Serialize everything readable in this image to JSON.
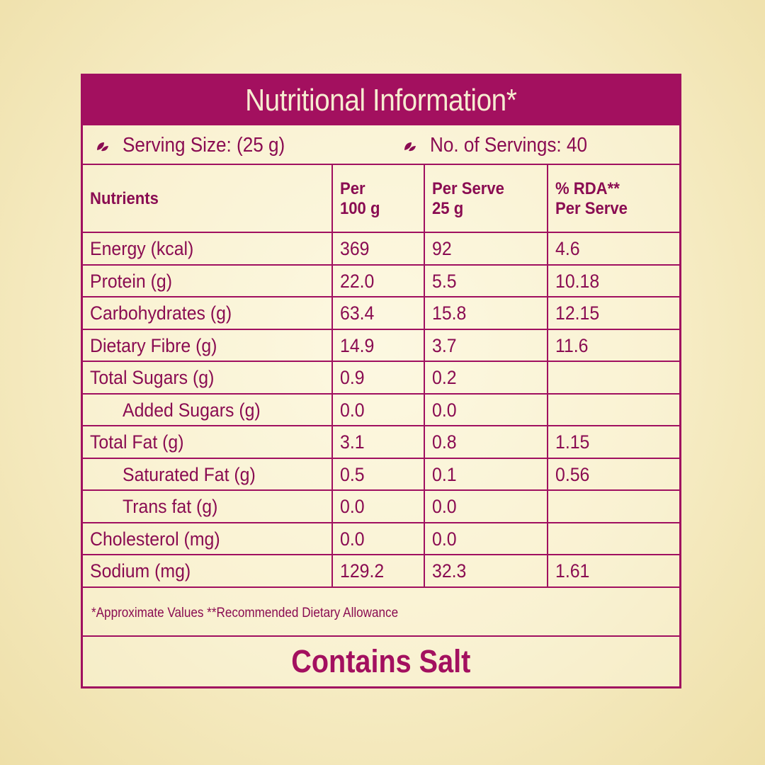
{
  "title": "Nutritional Information*",
  "serving": {
    "size_label": "Serving Size: (25 g)",
    "count_label": "No. of Servings: 40",
    "icon": "leaf-icon"
  },
  "table": {
    "headers": [
      "Nutrients",
      "Per\n100 g",
      "Per Serve\n25 g",
      "% RDA**\nPer Serve"
    ],
    "header_lines": [
      [
        "Nutrients"
      ],
      [
        "Per",
        "100 g"
      ],
      [
        "Per Serve",
        "25 g"
      ],
      [
        "% RDA**",
        "Per Serve"
      ]
    ],
    "rows": [
      {
        "name": "Energy (kcal)",
        "per100": "369",
        "perServe": "92",
        "rda": "4.6",
        "indent": false
      },
      {
        "name": "Protein (g)",
        "per100": "22.0",
        "perServe": "5.5",
        "rda": "10.18",
        "indent": false
      },
      {
        "name": "Carbohydrates (g)",
        "per100": "63.4",
        "perServe": "15.8",
        "rda": "12.15",
        "indent": false
      },
      {
        "name": "Dietary Fibre (g)",
        "per100": "14.9",
        "perServe": "3.7",
        "rda": "11.6",
        "indent": false
      },
      {
        "name": "Total Sugars (g)",
        "per100": "0.9",
        "perServe": "0.2",
        "rda": "",
        "indent": false
      },
      {
        "name": "Added Sugars (g)",
        "per100": "0.0",
        "perServe": "0.0",
        "rda": "",
        "indent": true
      },
      {
        "name": "Total Fat (g)",
        "per100": "3.1",
        "perServe": "0.8",
        "rda": "1.15",
        "indent": false
      },
      {
        "name": "Saturated Fat (g)",
        "per100": "0.5",
        "perServe": "0.1",
        "rda": "0.56",
        "indent": true
      },
      {
        "name": "Trans fat (g)",
        "per100": "0.0",
        "perServe": "0.0",
        "rda": "",
        "indent": true
      },
      {
        "name": "Cholesterol (mg)",
        "per100": "0.0",
        "perServe": "0.0",
        "rda": "",
        "indent": false
      },
      {
        "name": "Sodium (mg)",
        "per100": "129.2",
        "perServe": "32.3",
        "rda": "1.61",
        "indent": false
      }
    ]
  },
  "footnote": "*Approximate Values  **Recommended Dietary Allowance",
  "contains": "Contains Salt",
  "colors": {
    "accent": "#a3105f",
    "text": "#8a0c52",
    "title_text": "#f6ecd0",
    "background": "#f6ecc4"
  }
}
